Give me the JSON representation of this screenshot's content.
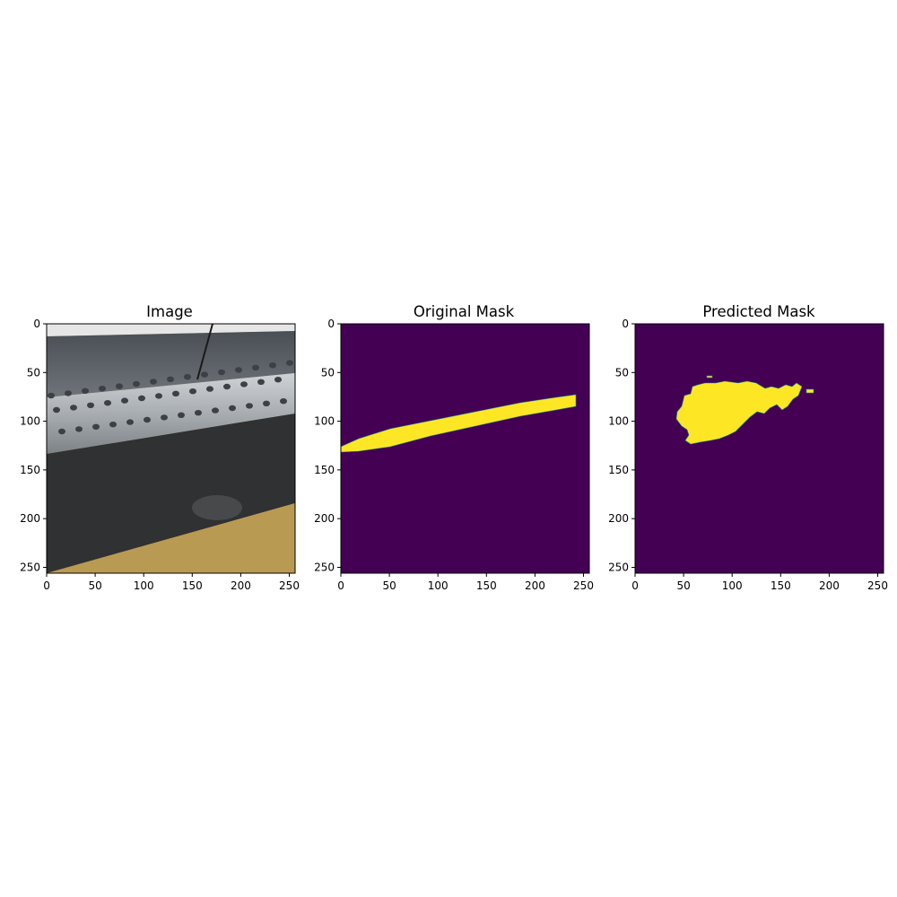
{
  "panels": [
    {
      "title": "Image",
      "kind": "photo",
      "xticks": [
        "0",
        "50",
        "100",
        "150",
        "200",
        "250"
      ],
      "yticks": [
        "0",
        "50",
        "100",
        "150",
        "200",
        "250"
      ],
      "extent": [
        0,
        256
      ]
    },
    {
      "title": "Original Mask",
      "kind": "mask-original",
      "xticks": [
        "0",
        "50",
        "100",
        "150",
        "200",
        "250"
      ],
      "yticks": [
        "0",
        "50",
        "100",
        "150",
        "200",
        "250"
      ],
      "extent": [
        0,
        256
      ]
    },
    {
      "title": "Predicted Mask",
      "kind": "mask-predicted",
      "xticks": [
        "0",
        "50",
        "100",
        "150",
        "200",
        "250"
      ],
      "yticks": [
        "0",
        "50",
        "100",
        "150",
        "200",
        "250"
      ],
      "extent": [
        0,
        256
      ]
    }
  ],
  "colors": {
    "mask_background": "#440154",
    "mask_foreground": "#fde725",
    "mask_edge": "#21918c"
  }
}
